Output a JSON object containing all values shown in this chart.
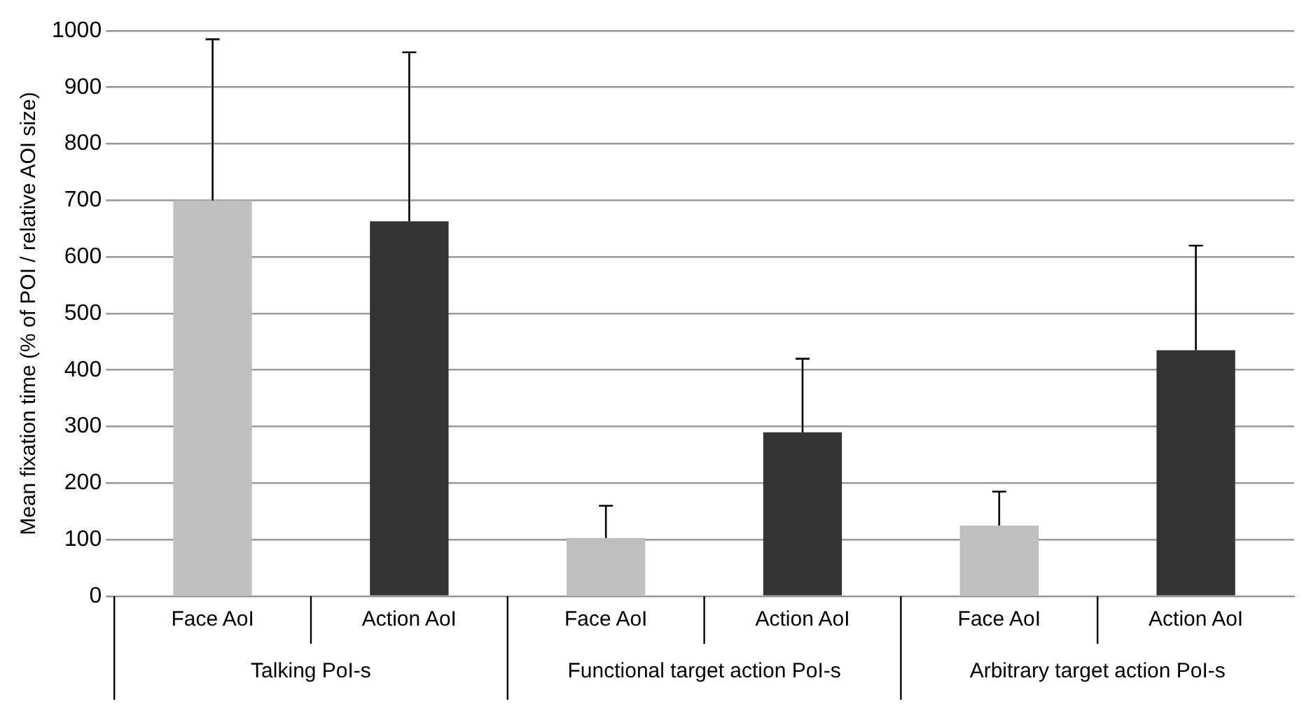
{
  "chart_data": {
    "type": "bar",
    "ylabel": "Mean fixation time (% of POI / relative AOI size)",
    "categories": [
      "Face AoI",
      "Action AoI",
      "Face AoI",
      "Action AoI",
      "Face AoI",
      "Action AoI"
    ],
    "values": [
      700,
      663,
      103,
      290,
      125,
      435
    ],
    "colors": [
      "#bfbfbf",
      "#333333",
      "#bfbfbf",
      "#333333",
      "#bfbfbf",
      "#333333"
    ],
    "errors": [
      [
        700,
        985
      ],
      [
        663,
        962
      ],
      [
        103,
        160
      ],
      [
        290,
        420
      ],
      [
        125,
        185
      ],
      [
        435,
        620
      ]
    ],
    "annotations": [
      "Talking PoI-s",
      "Functional target action PoI-s",
      "Arbitrary target action PoI-s"
    ],
    "ylim": [
      0,
      1000
    ],
    "yticks": [
      0,
      100,
      200,
      300,
      400,
      500,
      600,
      700,
      800,
      900,
      1000
    ],
    "grid": "y",
    "legend": false
  }
}
